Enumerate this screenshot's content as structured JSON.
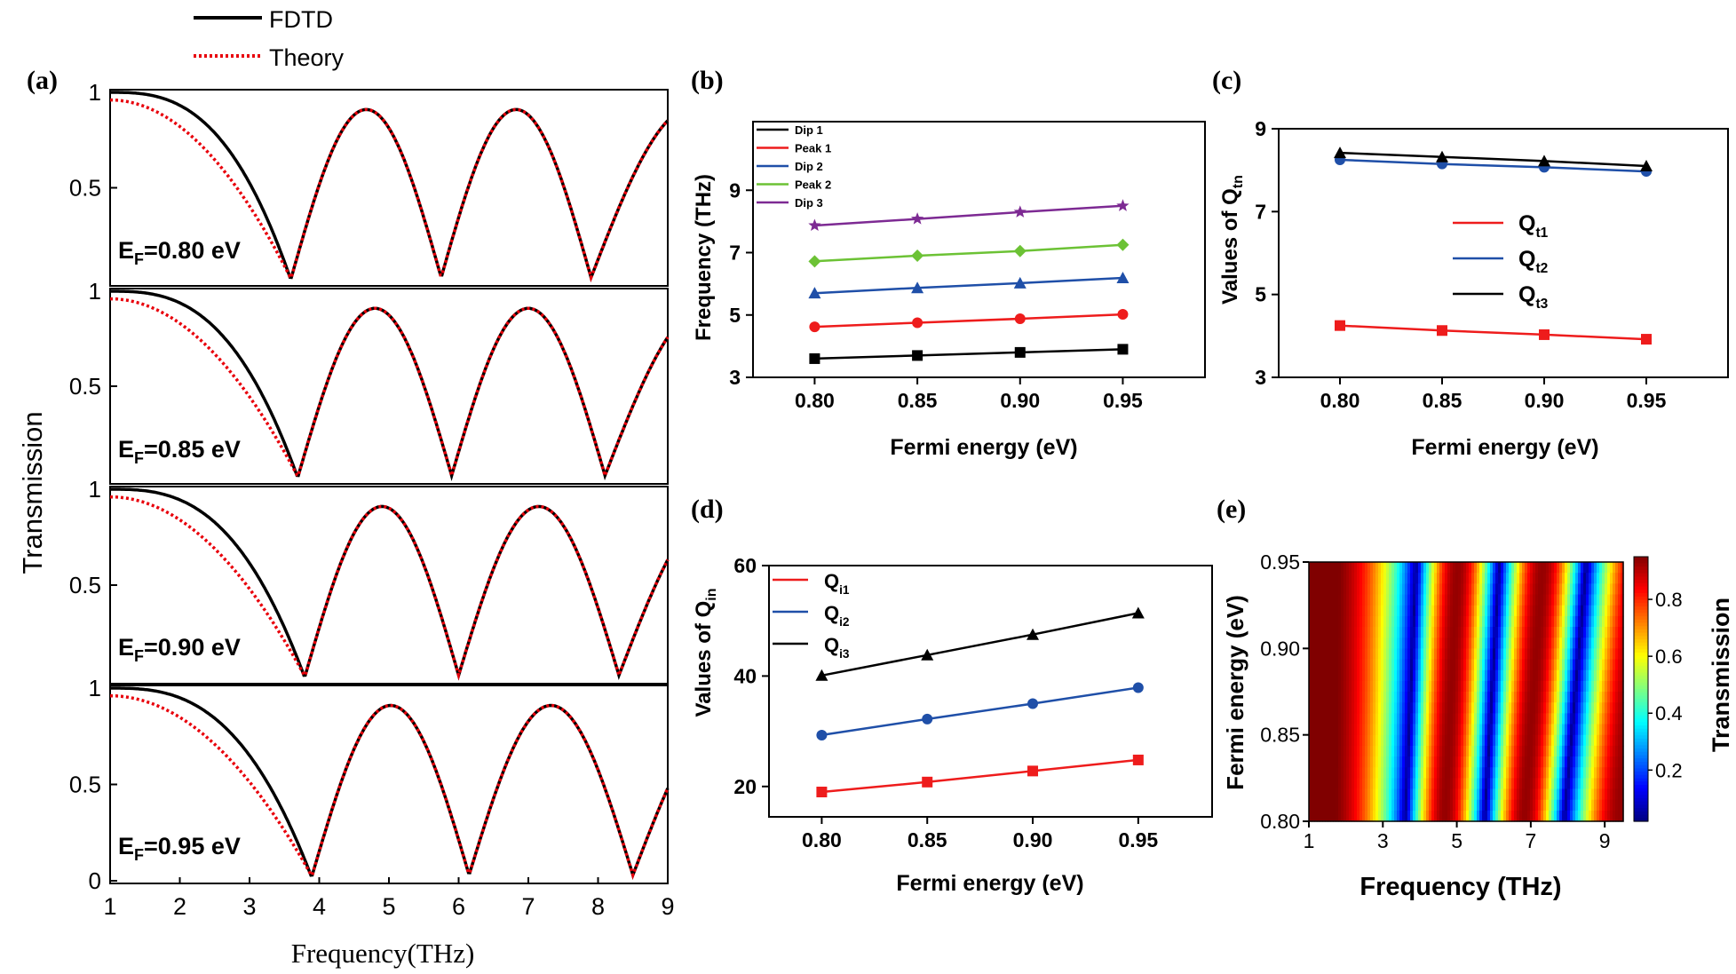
{
  "panel_labels": {
    "a": "(a)",
    "b": "(b)",
    "c": "(c)",
    "d": "(d)",
    "e": "(e)"
  },
  "chart_data": [
    {
      "panel": "a",
      "type": "line",
      "legend": {
        "placement": "top-left-above",
        "entries": [
          "FDTD",
          "Theory"
        ]
      },
      "xlabel": "Frequency(THz)",
      "ylabel": "Transmission",
      "xlim": [
        1,
        9
      ],
      "xticks": [
        "1",
        "2",
        "3",
        "4",
        "5",
        "6",
        "7",
        "8",
        "9"
      ],
      "subplots": [
        {
          "label_main": "E",
          "label_sub": "F",
          "label_rest": "=0.80 eV",
          "ylim": [
            0,
            1
          ],
          "yticks": [
            "0.5",
            "1"
          ],
          "dips_thz": [
            3.6,
            5.75,
            7.9
          ],
          "peaks_thz": [
            4.65,
            6.75
          ],
          "series": [
            {
              "name": "FDTD",
              "color": "#000000",
              "style": "solid"
            },
            {
              "name": "Theory",
              "color": "#e8000b",
              "style": "dotted"
            }
          ]
        },
        {
          "label_main": "E",
          "label_sub": "F",
          "label_rest": "=0.85 eV",
          "ylim": [
            0,
            1
          ],
          "yticks": [
            "0.5",
            "1"
          ],
          "dips_thz": [
            3.7,
            5.9,
            8.1
          ],
          "peaks_thz": [
            4.75,
            6.95
          ],
          "series": [
            {
              "name": "FDTD",
              "color": "#000000",
              "style": "solid"
            },
            {
              "name": "Theory",
              "color": "#e8000b",
              "style": "dotted"
            }
          ]
        },
        {
          "label_main": "E",
          "label_sub": "F",
          "label_rest": "=0.90 eV",
          "ylim": [
            0,
            1
          ],
          "yticks": [
            "0.5",
            "1"
          ],
          "dips_thz": [
            3.8,
            6.0,
            8.3
          ],
          "peaks_thz": [
            4.9,
            7.1
          ],
          "series": [
            {
              "name": "FDTD",
              "color": "#000000",
              "style": "solid"
            },
            {
              "name": "Theory",
              "color": "#e8000b",
              "style": "dotted"
            }
          ]
        },
        {
          "label_main": "E",
          "label_sub": "F",
          "label_rest": "=0.95 eV",
          "ylim": [
            0,
            1
          ],
          "yticks": [
            "0",
            "0.5",
            "1"
          ],
          "dips_thz": [
            3.9,
            6.15,
            8.5
          ],
          "peaks_thz": [
            5.0,
            7.25
          ],
          "series": [
            {
              "name": "FDTD",
              "color": "#000000",
              "style": "solid"
            },
            {
              "name": "Theory",
              "color": "#e8000b",
              "style": "dotted"
            }
          ]
        }
      ]
    },
    {
      "panel": "b",
      "type": "line",
      "xlabel": "Fermi energy (eV)",
      "ylabel": "Frequency (THz)",
      "xlim": [
        0.77,
        0.99
      ],
      "ylim": [
        3,
        11.2
      ],
      "xticks": [
        0.8,
        0.85,
        0.9,
        0.95
      ],
      "xtick_labels": [
        "0.80",
        "0.85",
        "0.90",
        "0.95"
      ],
      "yticks": [
        3,
        5,
        7,
        9
      ],
      "ytick_labels": [
        "3",
        "5",
        "7",
        "9"
      ],
      "legend": {
        "placement": "top-left"
      },
      "x": [
        0.8,
        0.85,
        0.9,
        0.95
      ],
      "series": [
        {
          "name": "Dip 1",
          "color": "#000000",
          "marker": "square",
          "values": [
            3.6,
            3.7,
            3.8,
            3.9
          ]
        },
        {
          "name": "Peak 1",
          "color": "#ee1c1c",
          "marker": "circle",
          "values": [
            4.62,
            4.75,
            4.88,
            5.02
          ]
        },
        {
          "name": "Dip 2",
          "color": "#1f4fa8",
          "marker": "triangle",
          "values": [
            5.7,
            5.87,
            6.02,
            6.19
          ]
        },
        {
          "name": "Peak 2",
          "color": "#6cc235",
          "marker": "diamond",
          "values": [
            6.72,
            6.9,
            7.05,
            7.25
          ]
        },
        {
          "name": "Dip 3",
          "color": "#7d2a93",
          "marker": "star",
          "values": [
            7.87,
            8.08,
            8.3,
            8.5
          ]
        }
      ]
    },
    {
      "panel": "c",
      "type": "line",
      "xlabel": "Fermi energy (eV)",
      "ylabel_main": "Values of Q",
      "ylabel_sub": "tn",
      "xlim": [
        0.77,
        0.99
      ],
      "ylim": [
        3,
        9
      ],
      "xticks": [
        0.8,
        0.85,
        0.9,
        0.95
      ],
      "xtick_labels": [
        "0.80",
        "0.85",
        "0.90",
        "0.95"
      ],
      "yticks": [
        3,
        5,
        7,
        9
      ],
      "ytick_labels": [
        "3",
        "5",
        "7",
        "9"
      ],
      "legend": {
        "placement": "center"
      },
      "x": [
        0.8,
        0.85,
        0.9,
        0.95
      ],
      "series": [
        {
          "name": "Q",
          "sub": "t1",
          "color": "#ee1c1c",
          "marker": "square",
          "values": [
            4.25,
            4.13,
            4.03,
            3.92
          ]
        },
        {
          "name": "Q",
          "sub": "t2",
          "color": "#1f4fa8",
          "marker": "circle",
          "values": [
            8.25,
            8.15,
            8.07,
            7.97
          ]
        },
        {
          "name": "Q",
          "sub": "t3",
          "color": "#000000",
          "marker": "triangle",
          "values": [
            8.42,
            8.32,
            8.22,
            8.1
          ]
        }
      ]
    },
    {
      "panel": "d",
      "type": "line",
      "xlabel": "Fermi energy (eV)",
      "ylabel_main": "Values of Q",
      "ylabel_sub": "in",
      "xlim": [
        0.775,
        0.985
      ],
      "ylim": [
        14.5,
        60
      ],
      "xticks": [
        0.8,
        0.85,
        0.9,
        0.95
      ],
      "xtick_labels": [
        "0.80",
        "0.85",
        "0.90",
        "0.95"
      ],
      "yticks": [
        20,
        40,
        60
      ],
      "ytick_labels": [
        "20",
        "40",
        "60"
      ],
      "legend": {
        "placement": "top-left"
      },
      "x": [
        0.8,
        0.85,
        0.9,
        0.95
      ],
      "series": [
        {
          "name": "Q",
          "sub": "i1",
          "color": "#ee1c1c",
          "marker": "square",
          "values": [
            19.0,
            20.8,
            22.8,
            24.8
          ]
        },
        {
          "name": "Q",
          "sub": "i2",
          "color": "#1f4fa8",
          "marker": "circle",
          "values": [
            29.3,
            32.2,
            35.0,
            37.9
          ]
        },
        {
          "name": "Q",
          "sub": "i3",
          "color": "#000000",
          "marker": "triangle",
          "values": [
            40.1,
            43.8,
            47.5,
            51.4
          ]
        }
      ]
    },
    {
      "panel": "e",
      "type": "heatmap",
      "xlabel": "Frequency (THz)",
      "ylabel": "Fermi energy (eV)",
      "colorbar_label": "Transmission",
      "xlim": [
        1,
        9.5
      ],
      "ylim": [
        0.8,
        0.95
      ],
      "xticks": [
        1,
        3,
        5,
        7,
        9
      ],
      "xtick_labels": [
        "1",
        "3",
        "5",
        "7",
        "9"
      ],
      "yticks": [
        0.8,
        0.85,
        0.9,
        0.95
      ],
      "ytick_labels": [
        "0.80",
        "0.85",
        "0.90",
        "0.95"
      ],
      "colorbar_range": [
        0.02,
        0.95
      ],
      "colorbar_ticks": [
        0.2,
        0.4,
        0.6,
        0.8
      ],
      "colorbar_tick_labels": [
        "0.2",
        "0.4",
        "0.6",
        "0.8"
      ],
      "dip_at_080": [
        3.6,
        5.75,
        7.9
      ],
      "dip_at_095": [
        3.9,
        6.15,
        8.5
      ],
      "colormap": "jet"
    }
  ]
}
